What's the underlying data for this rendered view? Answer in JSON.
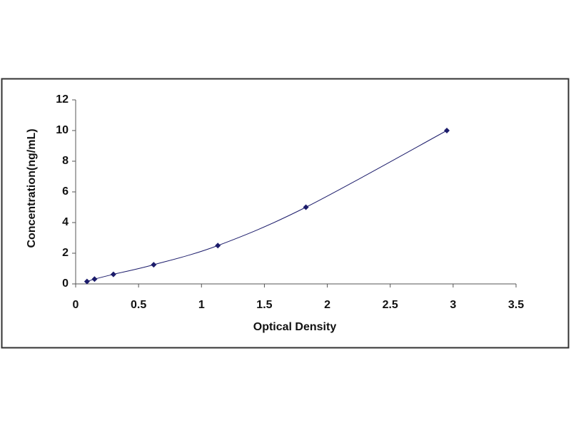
{
  "chart_data": {
    "type": "line",
    "x_label": "Optical Density",
    "y_label": "Concentration(ng/mL)",
    "x": [
      0.09,
      0.15,
      0.3,
      0.62,
      1.13,
      1.83,
      2.95
    ],
    "series": [
      {
        "color": "#1c1c6b",
        "values": [
          0.156,
          0.312,
          0.625,
          1.25,
          2.5,
          5,
          10
        ]
      }
    ],
    "marker": "diamond",
    "xlim": [
      0,
      3.5
    ],
    "xticks": [
      0,
      0.5,
      1,
      1.5,
      2,
      2.5,
      3,
      3.5
    ],
    "ylim": [
      0,
      12
    ],
    "yticks": [
      0,
      2,
      4,
      6,
      8,
      10,
      12
    ],
    "grid": false
  }
}
